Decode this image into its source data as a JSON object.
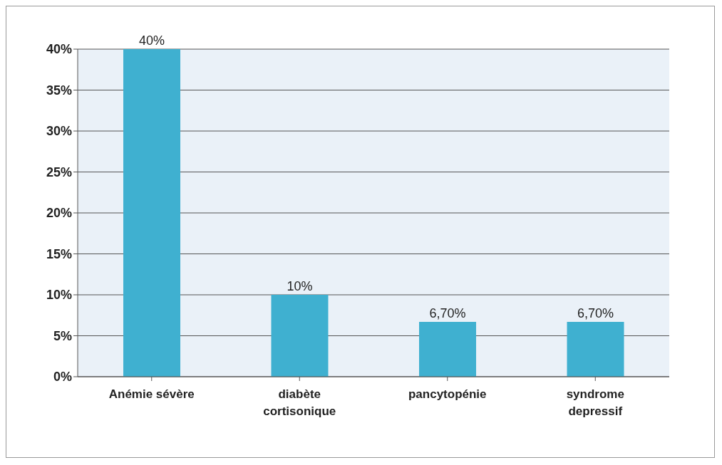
{
  "chart_data": {
    "type": "bar",
    "categories": [
      "Anémie sévère",
      "diabète cortisonique",
      "pancytopénie",
      "syndrome depressif"
    ],
    "values": [
      40,
      10,
      6.7,
      6.7
    ],
    "color": "#3fb0d0",
    "value_labels": [
      "40%",
      "10%",
      "6,70%",
      "6,70%"
    ],
    "ylim": [
      0,
      40
    ],
    "yticks": [
      {
        "value": 0,
        "label": "0%"
      },
      {
        "value": 5,
        "label": "5%"
      },
      {
        "value": 10,
        "label": "10%"
      },
      {
        "value": 15,
        "label": "15%"
      },
      {
        "value": 20,
        "label": "20%"
      },
      {
        "value": 25,
        "label": "25%"
      },
      {
        "value": 30,
        "label": "30%"
      },
      {
        "value": 35,
        "label": "35%"
      },
      {
        "value": 40,
        "label": "40%"
      }
    ],
    "grid": "y"
  }
}
